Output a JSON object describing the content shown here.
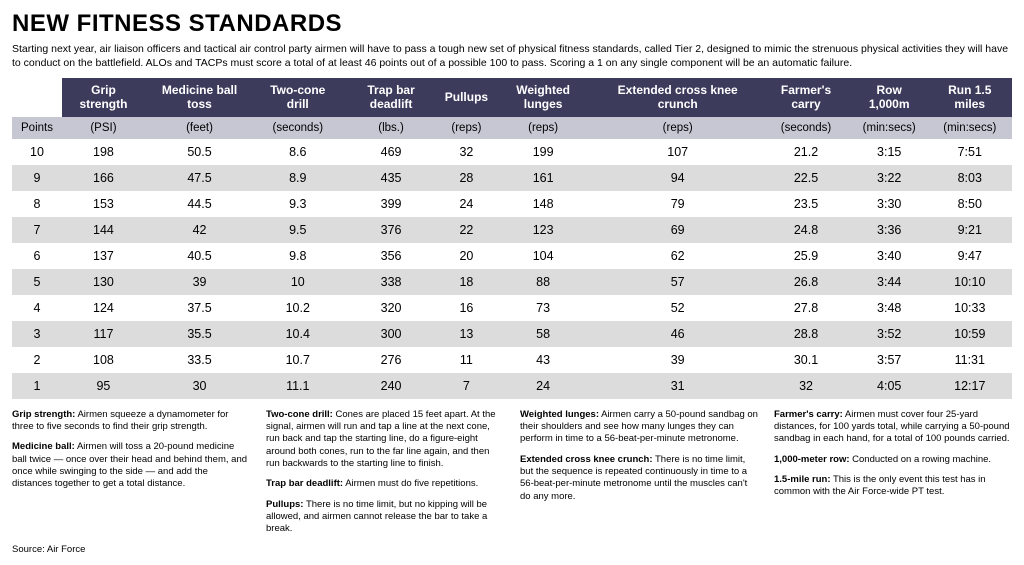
{
  "title": "NEW FITNESS STANDARDS",
  "intro": "Starting next year, air liaison officers and tactical air control party airmen will have to pass a tough new set of physical fitness standards, called Tier 2, designed to mimic the strenuous physical activities they will have to conduct on the battlefield. ALOs and TACPs must score a total of at least 46 points out of a possible 100 to pass. Scoring a 1 on any single component will be an automatic failure.",
  "table": {
    "header_bg": "#3d3b5c",
    "header_fg": "#ffffff",
    "units_bg": "#c7c6d3",
    "row_alt_bg": "#dcdcdc",
    "columns": [
      {
        "name": "",
        "unit": "Points"
      },
      {
        "name": "Grip strength",
        "unit": "(PSI)"
      },
      {
        "name": "Medicine ball toss",
        "unit": "(feet)"
      },
      {
        "name": "Two-cone drill",
        "unit": "(seconds)"
      },
      {
        "name": "Trap bar deadlift",
        "unit": "(lbs.)"
      },
      {
        "name": "Pullups",
        "unit": "(reps)"
      },
      {
        "name": "Weighted lunges",
        "unit": "(reps)"
      },
      {
        "name": "Extended cross knee crunch",
        "unit": "(reps)"
      },
      {
        "name": "Farmer's carry",
        "unit": "(seconds)"
      },
      {
        "name": "Row 1,000m",
        "unit": "(min:secs)"
      },
      {
        "name": "Run 1.5 miles",
        "unit": "(min:secs)"
      }
    ],
    "rows": [
      [
        "10",
        "198",
        "50.5",
        "8.6",
        "469",
        "32",
        "199",
        "107",
        "21.2",
        "3:15",
        "7:51"
      ],
      [
        "9",
        "166",
        "47.5",
        "8.9",
        "435",
        "28",
        "161",
        "94",
        "22.5",
        "3:22",
        "8:03"
      ],
      [
        "8",
        "153",
        "44.5",
        "9.3",
        "399",
        "24",
        "148",
        "79",
        "23.5",
        "3:30",
        "8:50"
      ],
      [
        "7",
        "144",
        "42",
        "9.5",
        "376",
        "22",
        "123",
        "69",
        "24.8",
        "3:36",
        "9:21"
      ],
      [
        "6",
        "137",
        "40.5",
        "9.8",
        "356",
        "20",
        "104",
        "62",
        "25.9",
        "3:40",
        "9:47"
      ],
      [
        "5",
        "130",
        "39",
        "10",
        "338",
        "18",
        "88",
        "57",
        "26.8",
        "3:44",
        "10:10"
      ],
      [
        "4",
        "124",
        "37.5",
        "10.2",
        "320",
        "16",
        "73",
        "52",
        "27.8",
        "3:48",
        "10:33"
      ],
      [
        "3",
        "117",
        "35.5",
        "10.4",
        "300",
        "13",
        "58",
        "46",
        "28.8",
        "3:52",
        "10:59"
      ],
      [
        "2",
        "108",
        "33.5",
        "10.7",
        "276",
        "11",
        "43",
        "39",
        "30.1",
        "3:57",
        "11:31"
      ],
      [
        "1",
        "95",
        "30",
        "11.1",
        "240",
        "7",
        "24",
        "31",
        "32",
        "4:05",
        "12:17"
      ]
    ]
  },
  "descriptions": [
    {
      "label": "Grip strength:",
      "text": " Airmen squeeze a dynamometer for three to five seconds to find their grip strength."
    },
    {
      "label": "Medicine ball:",
      "text": " Airmen will toss a 20-pound medicine ball twice — once over their head and behind them, and once while swinging to the side — and add the distances together to get a total distance."
    },
    {
      "label": "Two-cone drill:",
      "text": " Cones are placed 15 feet apart. At the signal, airmen will run and tap a line at the next cone, run back and tap the starting line, do a figure-eight around both cones, run to the far line again, and then run backwards to the starting line to finish."
    },
    {
      "label": "Trap bar deadlift:",
      "text": " Airmen must do five repetitions."
    },
    {
      "label": "Pullups:",
      "text": " There is no time limit, but no kipping will be allowed, and airmen cannot release the bar to take a break."
    },
    {
      "label": "Weighted lunges:",
      "text": " Airmen carry a 50-pound sandbag on their shoulders and see how many lunges they can perform in time to a 56-beat-per-minute metronome."
    },
    {
      "label": "Extended cross knee crunch:",
      "text": " There is no time limit, but the sequence is repeated continuously in time to a 56-beat-per-minute metronome until the muscles can't do any more."
    },
    {
      "label": "Farmer's carry:",
      "text": " Airmen must cover four 25-yard distances, for 100 yards total, while carrying a 50-pound sandbag in each hand, for a total of 100 pounds carried."
    },
    {
      "label": "1,000-meter row:",
      "text": " Conducted on a rowing machine."
    },
    {
      "label": "1.5-mile run:",
      "text": " This is the only event this test has in common with the Air Force-wide PT test."
    }
  ],
  "source": "Source: Air Force"
}
